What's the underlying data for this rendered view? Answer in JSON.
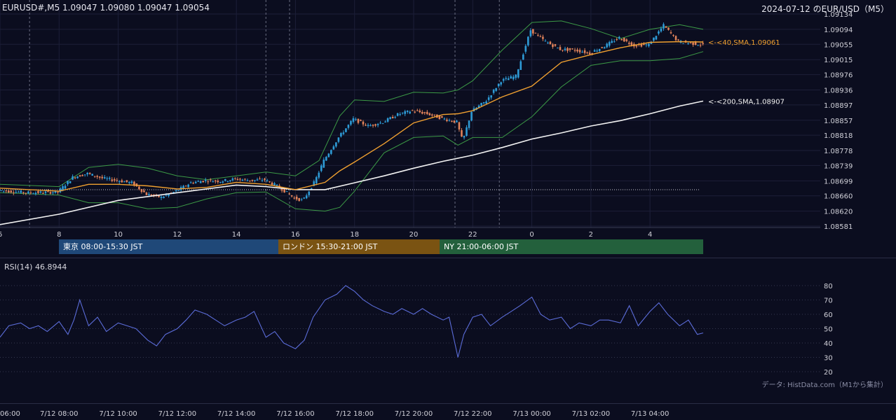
{
  "header": {
    "symbol_info": "EURUSD#,M5 1.09047 1.09080 1.09047 1.09054",
    "title": "2024-07-12 のEUR/USD（M5）"
  },
  "sessions": [
    {
      "label": "東京 08:00-15:30 JST"
    },
    {
      "label": "ロンドン 15:30-21:00 JST"
    },
    {
      "label": "NY 21:00-06:00 JST"
    }
  ],
  "rsi_label": "RSI(14) 46.8944",
  "source_note": "データ: HistData.com（M1から集計）",
  "colors": {
    "background": "#0b0d1f",
    "candle_up": "#2e9bd6",
    "candle_down": "#e0825a",
    "sma40": "#f0a030",
    "sma200": "#f2f2f2",
    "bollinger": "#3c9a46",
    "rsi": "#5b6cd8",
    "tokyo": "#1f4878",
    "london": "#7a5312",
    "ny": "#23603c"
  },
  "chart_data": [
    {
      "type": "candlestick",
      "timeframe": "M5",
      "symbol": "EURUSD#",
      "last_ohlc": {
        "open": 1.09047,
        "high": 1.0908,
        "low": 1.09047,
        "close": 1.09054
      },
      "ylim": [
        1.08581,
        1.09134
      ],
      "y_ticks": [
        "1.09134",
        "1.09094",
        "1.09055",
        "1.09015",
        "1.08976",
        "1.08936",
        "1.08897",
        "1.08857",
        "1.08818",
        "1.08778",
        "1.08739",
        "1.08699",
        "1.08660",
        "1.08620",
        "1.08581"
      ],
      "x_ticks": [
        "6",
        "8",
        "10",
        "12",
        "14",
        "16",
        "18",
        "20",
        "22",
        "0",
        "2",
        "4"
      ],
      "x_tick_hours": [
        6,
        8,
        10,
        12,
        14,
        16,
        18,
        20,
        22,
        24,
        26,
        28
      ],
      "x_range_hours": [
        6,
        29.8
      ],
      "grid": true,
      "reference_line": 1.08676,
      "indicators": [
        {
          "name": "<-<40,SMA,1.09061",
          "value": 1.09061
        },
        {
          "name": "<-<200,SMA,1.08907",
          "value": 1.08907
        }
      ],
      "sma40_path": [
        [
          6,
          1.0868
        ],
        [
          8,
          1.08672
        ],
        [
          9,
          1.0869
        ],
        [
          10,
          1.0869
        ],
        [
          11,
          1.08686
        ],
        [
          12,
          1.08678
        ],
        [
          13,
          1.08682
        ],
        [
          14,
          1.08695
        ],
        [
          15,
          1.0869
        ],
        [
          16,
          1.08676
        ],
        [
          17,
          1.08695
        ],
        [
          17.5,
          1.08725
        ],
        [
          18,
          1.08748
        ],
        [
          19,
          1.08796
        ],
        [
          20,
          1.0885
        ],
        [
          21,
          1.08872
        ],
        [
          21.5,
          1.08874
        ],
        [
          22,
          1.08882
        ],
        [
          23,
          1.08918
        ],
        [
          24,
          1.08946
        ],
        [
          25,
          1.09008
        ],
        [
          26,
          1.09028
        ],
        [
          27,
          1.09046
        ],
        [
          28,
          1.0906
        ],
        [
          29,
          1.09062
        ],
        [
          29.8,
          1.09061
        ]
      ],
      "sma200_path": [
        [
          6,
          1.08585
        ],
        [
          8,
          1.08612
        ],
        [
          10,
          1.08648
        ],
        [
          12,
          1.08668
        ],
        [
          14,
          1.08688
        ],
        [
          15,
          1.08684
        ],
        [
          16,
          1.08676
        ],
        [
          17,
          1.08676
        ],
        [
          18,
          1.08694
        ],
        [
          19,
          1.08712
        ],
        [
          20,
          1.08732
        ],
        [
          21,
          1.0875
        ],
        [
          22,
          1.08766
        ],
        [
          23,
          1.08786
        ],
        [
          24,
          1.08808
        ],
        [
          25,
          1.08824
        ],
        [
          26,
          1.08842
        ],
        [
          27,
          1.08856
        ],
        [
          28,
          1.08874
        ],
        [
          29,
          1.08894
        ],
        [
          29.8,
          1.08907
        ]
      ],
      "bb_upper_path": [
        [
          6,
          1.0869
        ],
        [
          8,
          1.08684
        ],
        [
          9,
          1.08734
        ],
        [
          10,
          1.08742
        ],
        [
          11,
          1.08732
        ],
        [
          12,
          1.08712
        ],
        [
          13,
          1.08702
        ],
        [
          14,
          1.08712
        ],
        [
          15,
          1.08722
        ],
        [
          16,
          1.08712
        ],
        [
          16.8,
          1.08752
        ],
        [
          17.5,
          1.08868
        ],
        [
          18,
          1.0891
        ],
        [
          19,
          1.08906
        ],
        [
          20,
          1.0893
        ],
        [
          21,
          1.08928
        ],
        [
          21.5,
          1.08936
        ],
        [
          22,
          1.0896
        ],
        [
          23,
          1.0904
        ],
        [
          24,
          1.09112
        ],
        [
          25,
          1.09116
        ],
        [
          26,
          1.09096
        ],
        [
          27,
          1.0907
        ],
        [
          28,
          1.09094
        ],
        [
          29,
          1.09106
        ],
        [
          29.8,
          1.09094
        ]
      ],
      "bb_lower_path": [
        [
          6,
          1.08668
        ],
        [
          8,
          1.08662
        ],
        [
          9,
          1.08642
        ],
        [
          10,
          1.08642
        ],
        [
          11,
          1.08626
        ],
        [
          12,
          1.0863
        ],
        [
          13,
          1.08652
        ],
        [
          14,
          1.08668
        ],
        [
          15,
          1.0867
        ],
        [
          16,
          1.08626
        ],
        [
          17,
          1.0862
        ],
        [
          17.5,
          1.0863
        ],
        [
          18,
          1.08672
        ],
        [
          19,
          1.08772
        ],
        [
          20,
          1.08812
        ],
        [
          21,
          1.08816
        ],
        [
          21.5,
          1.08792
        ],
        [
          22,
          1.08812
        ],
        [
          23,
          1.08812
        ],
        [
          24,
          1.08866
        ],
        [
          25,
          1.08944
        ],
        [
          26,
          1.09
        ],
        [
          27,
          1.09012
        ],
        [
          28,
          1.09012
        ],
        [
          29,
          1.09018
        ],
        [
          29.8,
          1.09036
        ]
      ],
      "price_path": [
        [
          6,
          1.08674
        ],
        [
          7,
          1.08668
        ],
        [
          8,
          1.0867
        ],
        [
          8.5,
          1.08708
        ],
        [
          9,
          1.08718
        ],
        [
          9.5,
          1.08706
        ],
        [
          10,
          1.087
        ],
        [
          10.5,
          1.08694
        ],
        [
          11,
          1.08664
        ],
        [
          11.5,
          1.08656
        ],
        [
          12,
          1.08672
        ],
        [
          12.5,
          1.08694
        ],
        [
          13,
          1.087
        ],
        [
          13.5,
          1.08698
        ],
        [
          14,
          1.08704
        ],
        [
          14.5,
          1.087
        ],
        [
          15,
          1.08702
        ],
        [
          15.5,
          1.08682
        ],
        [
          16,
          1.08654
        ],
        [
          16.3,
          1.08648
        ],
        [
          16.7,
          1.08698
        ],
        [
          17,
          1.08752
        ],
        [
          17.5,
          1.08812
        ],
        [
          18,
          1.0886
        ],
        [
          18.5,
          1.08842
        ],
        [
          19,
          1.08852
        ],
        [
          19.5,
          1.08872
        ],
        [
          20,
          1.08882
        ],
        [
          20.5,
          1.08874
        ],
        [
          21,
          1.08862
        ],
        [
          21.5,
          1.08852
        ],
        [
          21.7,
          1.08802
        ],
        [
          22,
          1.0888
        ],
        [
          22.5,
          1.08908
        ],
        [
          23,
          1.0896
        ],
        [
          23.5,
          1.08972
        ],
        [
          24,
          1.09092
        ],
        [
          24.5,
          1.09062
        ],
        [
          25,
          1.09042
        ],
        [
          25.5,
          1.0904
        ],
        [
          26,
          1.09032
        ],
        [
          26.5,
          1.0905
        ],
        [
          27,
          1.09072
        ],
        [
          27.5,
          1.09052
        ],
        [
          28,
          1.09054
        ],
        [
          28.5,
          1.09104
        ],
        [
          29,
          1.09062
        ],
        [
          29.8,
          1.09054
        ]
      ],
      "vertical_marks_hours": [
        7,
        15,
        15.8,
        21.4,
        22.9
      ]
    },
    {
      "type": "line",
      "name": "RSI(14)",
      "last_value": 46.8944,
      "ylim": [
        20,
        80
      ],
      "y_ticks": [
        80,
        70,
        60,
        50,
        40,
        30,
        20
      ],
      "x_tick_labels": [
        "06:00",
        "7/12 08:00",
        "7/12 10:00",
        "7/12 12:00",
        "7/12 14:00",
        "7/12 16:00",
        "7/12 18:00",
        "7/12 20:00",
        "7/12 22:00",
        "7/13 00:00",
        "7/13 02:00",
        "7/13 04:00"
      ],
      "x_tick_hours": [
        6,
        8,
        10,
        12,
        14,
        16,
        18,
        20,
        22,
        24,
        26,
        28
      ],
      "x_range_hours": [
        6,
        29.8
      ],
      "path": [
        [
          6,
          44
        ],
        [
          6.3,
          52
        ],
        [
          6.7,
          54
        ],
        [
          7,
          50
        ],
        [
          7.3,
          52
        ],
        [
          7.6,
          48
        ],
        [
          8,
          55
        ],
        [
          8.3,
          46
        ],
        [
          8.5,
          56
        ],
        [
          8.7,
          70
        ],
        [
          9,
          52
        ],
        [
          9.3,
          58
        ],
        [
          9.6,
          48
        ],
        [
          10,
          54
        ],
        [
          10.3,
          52
        ],
        [
          10.6,
          50
        ],
        [
          11,
          42
        ],
        [
          11.3,
          38
        ],
        [
          11.6,
          46
        ],
        [
          12,
          50
        ],
        [
          12.3,
          56
        ],
        [
          12.6,
          63
        ],
        [
          13,
          60
        ],
        [
          13.3,
          56
        ],
        [
          13.6,
          52
        ],
        [
          14,
          56
        ],
        [
          14.3,
          58
        ],
        [
          14.6,
          62
        ],
        [
          15,
          44
        ],
        [
          15.3,
          48
        ],
        [
          15.6,
          40
        ],
        [
          16,
          36
        ],
        [
          16.3,
          42
        ],
        [
          16.6,
          58
        ],
        [
          17,
          70
        ],
        [
          17.4,
          74
        ],
        [
          17.7,
          80
        ],
        [
          18,
          76
        ],
        [
          18.3,
          70
        ],
        [
          18.6,
          66
        ],
        [
          19,
          62
        ],
        [
          19.3,
          60
        ],
        [
          19.6,
          64
        ],
        [
          20,
          60
        ],
        [
          20.3,
          64
        ],
        [
          20.6,
          60
        ],
        [
          21,
          56
        ],
        [
          21.2,
          58
        ],
        [
          21.5,
          30
        ],
        [
          21.7,
          46
        ],
        [
          22,
          58
        ],
        [
          22.3,
          60
        ],
        [
          22.6,
          52
        ],
        [
          23,
          58
        ],
        [
          23.3,
          62
        ],
        [
          23.6,
          66
        ],
        [
          24,
          72
        ],
        [
          24.3,
          60
        ],
        [
          24.6,
          56
        ],
        [
          25,
          58
        ],
        [
          25.3,
          50
        ],
        [
          25.6,
          54
        ],
        [
          26,
          52
        ],
        [
          26.3,
          56
        ],
        [
          26.6,
          56
        ],
        [
          27,
          54
        ],
        [
          27.3,
          66
        ],
        [
          27.6,
          52
        ],
        [
          28,
          62
        ],
        [
          28.3,
          68
        ],
        [
          28.6,
          60
        ],
        [
          29,
          52
        ],
        [
          29.3,
          56
        ],
        [
          29.6,
          46
        ],
        [
          29.8,
          47
        ]
      ]
    }
  ]
}
